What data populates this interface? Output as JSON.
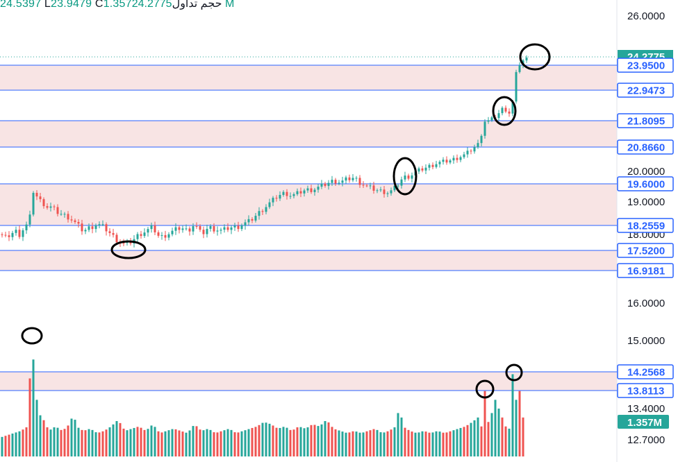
{
  "header": {
    "high_value": "24.5397",
    "low_label": "L",
    "low_value": "23.9479",
    "close_label": "C",
    "close_value": "1.357",
    "volume_label": "حجم تداول",
    "last_value": "24.2775",
    "suffix": "M"
  },
  "colors": {
    "up": "#26a69a",
    "down": "#ef5350",
    "level_line": "#2962ff",
    "zone_fill": "#f8e4e4",
    "price_badge": "#2962ff"
  },
  "icons": [
    "alarm-clock-icon"
  ],
  "chart_data": {
    "type": "candlestick",
    "price_axis": {
      "ticks": [
        26.0,
        20.0,
        19.0,
        18.0,
        16.0,
        15.0,
        13.4,
        12.7
      ],
      "tick_labels": [
        "26.0000",
        "20.0000",
        "19.0000",
        "18.0000",
        "16.0000",
        "15.0000",
        "13.4000",
        "12.7000"
      ],
      "range": [
        12.6,
        26.4
      ]
    },
    "levels": [
      {
        "value": 23.95,
        "label": "23.9500"
      },
      {
        "value": 22.9473,
        "label": "22.9473"
      },
      {
        "value": 21.8095,
        "label": "21.8095"
      },
      {
        "value": 20.866,
        "label": "20.8660"
      },
      {
        "value": 19.6,
        "label": "19.6000"
      },
      {
        "value": 18.2559,
        "label": "18.2559"
      },
      {
        "value": 17.52,
        "label": "17.5200"
      },
      {
        "value": 16.9181,
        "label": "16.9181"
      },
      {
        "value": 14.2568,
        "label": "14.2568"
      },
      {
        "value": 13.8113,
        "label": "13.8113"
      }
    ],
    "zones": [
      [
        22.9473,
        23.95
      ],
      [
        20.866,
        21.8095
      ],
      [
        18.2559,
        19.6
      ],
      [
        16.9181,
        17.52
      ],
      [
        13.8113,
        14.2568
      ]
    ],
    "last_price": {
      "value": 24.2775,
      "label": "24.2775"
    },
    "volume_badge": "1.357M",
    "price_anchors": [
      [
        0,
        18.0
      ],
      [
        8,
        17.9
      ],
      [
        15,
        18.0
      ],
      [
        22,
        18.1
      ],
      [
        28,
        18.0
      ],
      [
        35,
        18.2
      ],
      [
        40,
        18.3
      ],
      [
        44,
        18.6
      ],
      [
        46,
        19.4
      ],
      [
        50,
        19.3
      ],
      [
        55,
        19.1
      ],
      [
        60,
        19.0
      ],
      [
        65,
        18.9
      ],
      [
        70,
        18.8
      ],
      [
        75,
        18.85
      ],
      [
        80,
        18.7
      ],
      [
        90,
        18.6
      ],
      [
        100,
        18.5
      ],
      [
        110,
        18.3
      ],
      [
        120,
        18.1
      ],
      [
        130,
        18.2
      ],
      [
        140,
        18.3
      ],
      [
        150,
        18.2
      ],
      [
        160,
        18.0
      ],
      [
        170,
        17.8
      ],
      [
        180,
        17.7
      ],
      [
        190,
        17.8
      ],
      [
        200,
        18.0
      ],
      [
        210,
        18.1
      ],
      [
        220,
        18.2
      ],
      [
        230,
        17.9
      ],
      [
        240,
        18.0
      ],
      [
        250,
        18.1
      ],
      [
        260,
        18.2
      ],
      [
        270,
        18.1
      ],
      [
        280,
        18.3
      ],
      [
        290,
        18.0
      ],
      [
        300,
        18.2
      ],
      [
        310,
        18.15
      ],
      [
        320,
        18.1
      ],
      [
        330,
        18.2
      ],
      [
        340,
        18.2
      ],
      [
        350,
        18.3
      ],
      [
        360,
        18.4
      ],
      [
        370,
        18.6
      ],
      [
        380,
        18.8
      ],
      [
        390,
        19.0
      ],
      [
        400,
        19.2
      ],
      [
        410,
        19.3
      ],
      [
        420,
        19.2
      ],
      [
        430,
        19.3
      ],
      [
        440,
        19.4
      ],
      [
        450,
        19.4
      ],
      [
        460,
        19.5
      ],
      [
        470,
        19.6
      ],
      [
        480,
        19.7
      ],
      [
        490,
        19.65
      ],
      [
        500,
        19.75
      ],
      [
        510,
        19.8
      ],
      [
        520,
        19.6
      ],
      [
        530,
        19.5
      ],
      [
        540,
        19.4
      ],
      [
        550,
        19.35
      ],
      [
        560,
        19.3
      ],
      [
        570,
        19.5
      ],
      [
        580,
        19.8
      ],
      [
        590,
        19.85
      ],
      [
        600,
        20.0
      ],
      [
        610,
        20.1
      ],
      [
        620,
        20.2
      ],
      [
        630,
        20.3
      ],
      [
        640,
        20.35
      ],
      [
        650,
        20.4
      ],
      [
        660,
        20.5
      ],
      [
        670,
        20.6
      ],
      [
        680,
        20.8
      ],
      [
        690,
        21.0
      ],
      [
        697,
        21.8
      ],
      [
        705,
        21.8
      ],
      [
        715,
        22.0
      ],
      [
        725,
        22.3
      ],
      [
        733,
        22.1
      ],
      [
        738,
        22.5
      ],
      [
        742,
        23.5
      ],
      [
        746,
        23.9
      ],
      [
        750,
        24.1
      ],
      [
        758,
        24.2
      ]
    ],
    "volume_anchors": [
      [
        0,
        12.75
      ],
      [
        10,
        12.8
      ],
      [
        20,
        12.85
      ],
      [
        30,
        12.9
      ],
      [
        40,
        13.0
      ],
      [
        46,
        15.2
      ],
      [
        50,
        13.9
      ],
      [
        56,
        13.3
      ],
      [
        60,
        13.2
      ],
      [
        65,
        13.1
      ],
      [
        70,
        12.9
      ],
      [
        80,
        13.0
      ],
      [
        90,
        12.9
      ],
      [
        100,
        13.05
      ],
      [
        106,
        13.3
      ],
      [
        110,
        13.0
      ],
      [
        120,
        12.9
      ],
      [
        130,
        12.95
      ],
      [
        140,
        12.85
      ],
      [
        150,
        12.9
      ],
      [
        160,
        13.0
      ],
      [
        170,
        13.15
      ],
      [
        180,
        12.9
      ],
      [
        190,
        12.95
      ],
      [
        200,
        13.0
      ],
      [
        210,
        12.9
      ],
      [
        220,
        13.05
      ],
      [
        230,
        12.85
      ],
      [
        240,
        12.9
      ],
      [
        250,
        12.95
      ],
      [
        260,
        12.9
      ],
      [
        270,
        12.85
      ],
      [
        280,
        13.05
      ],
      [
        290,
        12.9
      ],
      [
        300,
        12.95
      ],
      [
        310,
        12.85
      ],
      [
        320,
        12.9
      ],
      [
        330,
        12.95
      ],
      [
        340,
        12.85
      ],
      [
        350,
        12.9
      ],
      [
        360,
        12.95
      ],
      [
        370,
        13.0
      ],
      [
        380,
        13.1
      ],
      [
        390,
        13.05
      ],
      [
        400,
        12.95
      ],
      [
        410,
        13.0
      ],
      [
        420,
        12.9
      ],
      [
        430,
        13.0
      ],
      [
        440,
        12.95
      ],
      [
        450,
        13.05
      ],
      [
        460,
        13.0
      ],
      [
        470,
        13.15
      ],
      [
        480,
        12.95
      ],
      [
        490,
        12.9
      ],
      [
        500,
        12.85
      ],
      [
        510,
        12.9
      ],
      [
        520,
        12.85
      ],
      [
        530,
        12.9
      ],
      [
        540,
        12.95
      ],
      [
        550,
        12.85
      ],
      [
        560,
        12.9
      ],
      [
        570,
        13.0
      ],
      [
        575,
        13.5
      ],
      [
        580,
        13.0
      ],
      [
        590,
        12.9
      ],
      [
        600,
        12.85
      ],
      [
        610,
        12.9
      ],
      [
        620,
        12.85
      ],
      [
        630,
        12.9
      ],
      [
        640,
        12.85
      ],
      [
        650,
        12.9
      ],
      [
        660,
        12.95
      ],
      [
        670,
        13.0
      ],
      [
        680,
        13.1
      ],
      [
        688,
        13.2
      ],
      [
        693,
        13.0
      ],
      [
        698,
        13.8
      ],
      [
        703,
        13.1
      ],
      [
        708,
        13.3
      ],
      [
        713,
        13.6
      ],
      [
        718,
        13.4
      ],
      [
        723,
        13.2
      ],
      [
        728,
        13.0
      ],
      [
        733,
        12.95
      ],
      [
        738,
        14.2
      ],
      [
        743,
        13.6
      ],
      [
        748,
        13.8
      ],
      [
        753,
        13.2
      ],
      [
        756,
        13.05
      ]
    ]
  }
}
